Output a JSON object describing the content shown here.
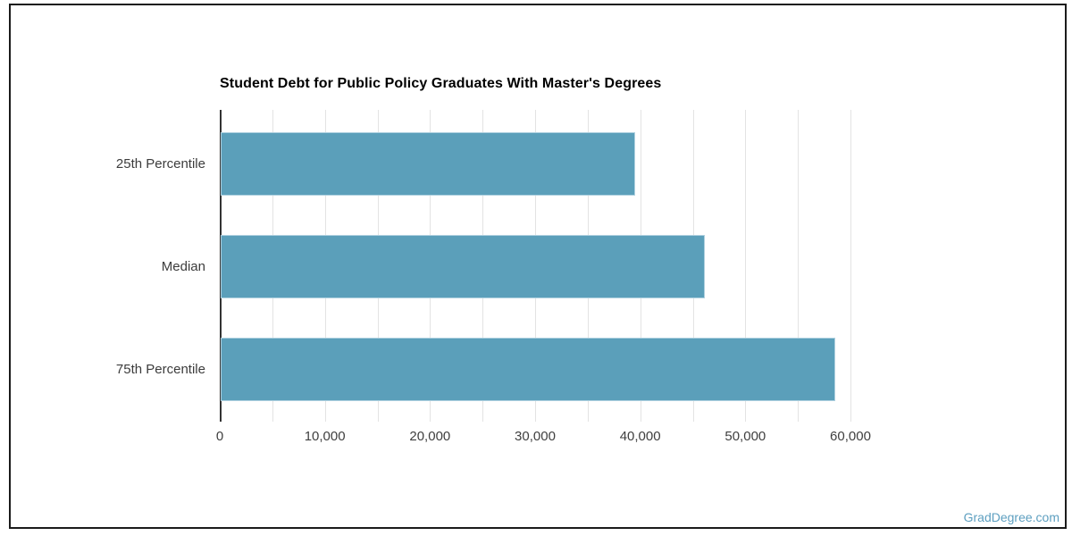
{
  "page": {
    "watermark": "GradDegree.com",
    "border_color": "#1b1b1b",
    "background_color": "#ffffff"
  },
  "chart_data": {
    "type": "bar",
    "orientation": "horizontal",
    "title": "Student Debt for Public Policy Graduates With Master's Degrees",
    "categories": [
      "25th Percentile",
      "Median",
      "75th Percentile"
    ],
    "values": [
      39400,
      46100,
      58500
    ],
    "xlabel": "",
    "ylabel": "",
    "xlim": [
      0,
      60000
    ],
    "gridline_interval": 5000,
    "labeled_tick_interval": 10000,
    "x_tick_labels": [
      "0",
      "10,000",
      "20,000",
      "30,000",
      "40,000",
      "50,000",
      "60,000"
    ],
    "grid": true,
    "legend": "none",
    "bar_color": "#5b9fba",
    "bar_edge_color": "#aed0df",
    "gridline_color": "#e3e3e3",
    "axis_line_color": "#333333",
    "title_color": "#000000",
    "label_color": "#3c3c3c"
  }
}
